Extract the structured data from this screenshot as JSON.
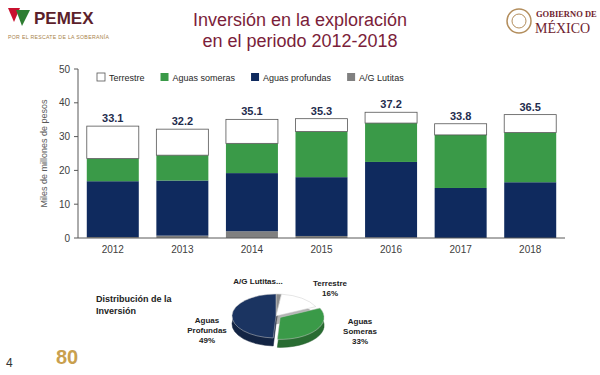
{
  "header": {
    "title": [
      "Inversión en la exploración",
      "en el periodo 2012-2018"
    ],
    "logo": "PEMEX",
    "slogan": "POR EL RESCATE DE LA SOBERANÍA",
    "government": [
      "GOBIERNO DE",
      "MÉXICO"
    ]
  },
  "footer": {
    "page": 4,
    "badge": "80"
  },
  "chart_data": [
    {
      "type": "bar",
      "stacked": true,
      "y_label": "Miles de millones de pesos",
      "categories": [
        "2012",
        "2013",
        "2014",
        "2015",
        "2016",
        "2017",
        "2018"
      ],
      "series": [
        {
          "name": "Terrestre",
          "color": "#ffffff",
          "values": [
            9.6,
            7.7,
            7.1,
            3.8,
            3.2,
            3.3,
            5.3
          ]
        },
        {
          "name": "Aguas someras",
          "color": "#3a9a48",
          "values": [
            6.7,
            7.5,
            8.8,
            13.5,
            11.5,
            15.7,
            14.7
          ]
        },
        {
          "name": "Aguas profundas",
          "color": "#0f2a5e",
          "values": [
            16.5,
            16.3,
            17.2,
            17.4,
            22.3,
            14.8,
            16.5
          ]
        },
        {
          "name": "A/G Lutitas",
          "color": "#808080",
          "values": [
            0.3,
            0.7,
            2.0,
            0.6,
            0.2,
            0,
            0
          ]
        }
      ],
      "totals": [
        33.1,
        32.2,
        35.1,
        35.3,
        37.2,
        33.8,
        36.5
      ],
      "ylim": [
        0,
        50
      ],
      "yticks": [
        0,
        10,
        20,
        30,
        40,
        50
      ],
      "grid": false,
      "legend": "top",
      "data_labels": false
    },
    {
      "type": "pie",
      "title": [
        "Distribución de la",
        "Inversión"
      ],
      "categories": [
        "A/G Lutitas...",
        "Terrestre",
        "Aguas Someras",
        "Aguas Profundas"
      ],
      "values": [
        2,
        16,
        33,
        49
      ],
      "value_labels": [
        null,
        "16%",
        "33%",
        "49%"
      ],
      "colors": [
        "#8c8c8c",
        "#ffffff",
        "#3a9a48",
        "#1b3461"
      ],
      "data_labels": true
    }
  ]
}
